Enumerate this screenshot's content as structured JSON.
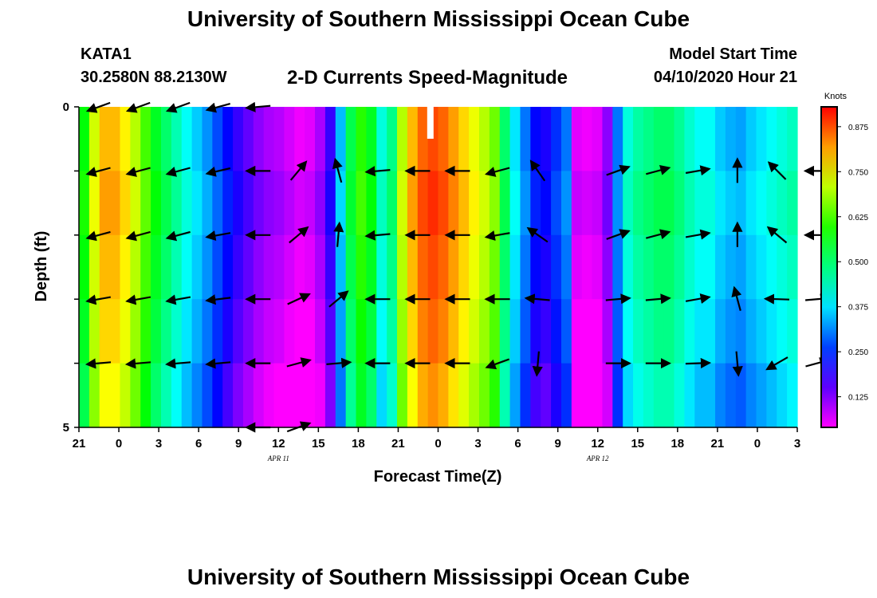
{
  "header": {
    "title": "University of Southern Mississippi Ocean Cube",
    "station_name": "KATA1",
    "station_coords": "30.2580N 88.2130W",
    "chart_title": "2-D Currents Speed-Magnitude",
    "model_label": "Model Start Time",
    "model_time": "04/10/2020 Hour 21"
  },
  "footer": {
    "title": "University of Southern Mississippi Ocean Cube"
  },
  "chart_data": {
    "type": "heatmap",
    "title": "2-D Currents Speed-Magnitude",
    "xlabel": "Forecast Time(Z)",
    "ylabel": "Depth (ft)",
    "x_tick_labels": [
      "21",
      "0",
      "3",
      "6",
      "9",
      "12",
      "15",
      "18",
      "21",
      "0",
      "3",
      "6",
      "9",
      "12",
      "15",
      "18",
      "21",
      "0",
      "3"
    ],
    "date_labels": [
      {
        "text": "APR 11",
        "tick_index": 5
      },
      {
        "text": "APR 12",
        "tick_index": 13
      }
    ],
    "y_tick_labels": [
      "0",
      "5"
    ],
    "ylim": [
      0,
      5
    ],
    "colorbar": {
      "label": "Knots",
      "range": [
        0.04,
        0.93
      ],
      "ticks": [
        "0.125",
        "0.250",
        "0.375",
        "0.500",
        "0.625",
        "0.750",
        "0.875"
      ],
      "tick_values": [
        0.125,
        0.25,
        0.375,
        0.5,
        0.625,
        0.75,
        0.875
      ]
    },
    "speed_profile_knots": [
      0.57,
      0.72,
      0.8,
      0.8,
      0.76,
      0.7,
      0.62,
      0.55,
      0.5,
      0.45,
      0.4,
      0.36,
      0.32,
      0.27,
      0.22,
      0.18,
      0.15,
      0.12,
      0.1,
      0.09,
      0.07,
      0.05,
      0.06,
      0.1,
      0.18,
      0.35,
      0.52,
      0.6,
      0.55,
      0.42,
      0.48,
      0.7,
      0.8,
      0.86,
      0.88,
      0.86,
      0.82,
      0.78,
      0.74,
      0.7,
      0.65,
      0.5,
      0.38,
      0.3,
      0.22,
      0.2,
      0.25,
      0.3,
      0.06,
      0.05,
      0.06,
      0.12,
      0.3,
      0.42,
      0.46,
      0.48,
      0.5,
      0.5,
      0.47,
      0.43,
      0.4,
      0.4,
      0.36,
      0.34,
      0.33,
      0.36,
      0.38,
      0.4,
      0.42,
      0.44
    ],
    "depth_offset_knots": [
      0.0,
      0.02,
      0.0,
      -0.02,
      -0.05
    ],
    "vector_times_hours": [
      1.5,
      4.5,
      7.5,
      10.5,
      13.5,
      16.5,
      19.5,
      22.5,
      25.5,
      28.5,
      31.5,
      34.5,
      37.5,
      40.5,
      43.5,
      46.5,
      49.5,
      52.5,
      55.5
    ],
    "vector_depth_rows": [
      0,
      1,
      2,
      3,
      4,
      5
    ],
    "vector_angles_deg": [
      [
        200,
        200,
        200,
        195,
        185,
        null,
        null,
        null,
        null,
        null,
        null,
        null,
        null,
        null,
        null,
        null,
        null,
        null,
        null
      ],
      [
        195,
        195,
        195,
        193,
        180,
        50,
        105,
        185,
        180,
        180,
        195,
        125,
        null,
        20,
        15,
        10,
        90,
        135,
        180
      ],
      [
        195,
        195,
        195,
        190,
        180,
        40,
        85,
        185,
        180,
        180,
        190,
        145,
        null,
        20,
        15,
        10,
        90,
        140,
        180
      ],
      [
        190,
        190,
        190,
        187,
        180,
        25,
        40,
        180,
        180,
        180,
        180,
        175,
        null,
        5,
        5,
        10,
        105,
        178,
        5
      ],
      [
        185,
        185,
        185,
        185,
        180,
        15,
        5,
        180,
        180,
        180,
        200,
        265,
        null,
        0,
        0,
        2,
        275,
        210,
        15
      ],
      [
        null,
        null,
        null,
        null,
        180,
        20,
        null,
        null,
        null,
        null,
        null,
        null,
        null,
        null,
        null,
        null,
        null,
        null,
        null
      ]
    ]
  }
}
